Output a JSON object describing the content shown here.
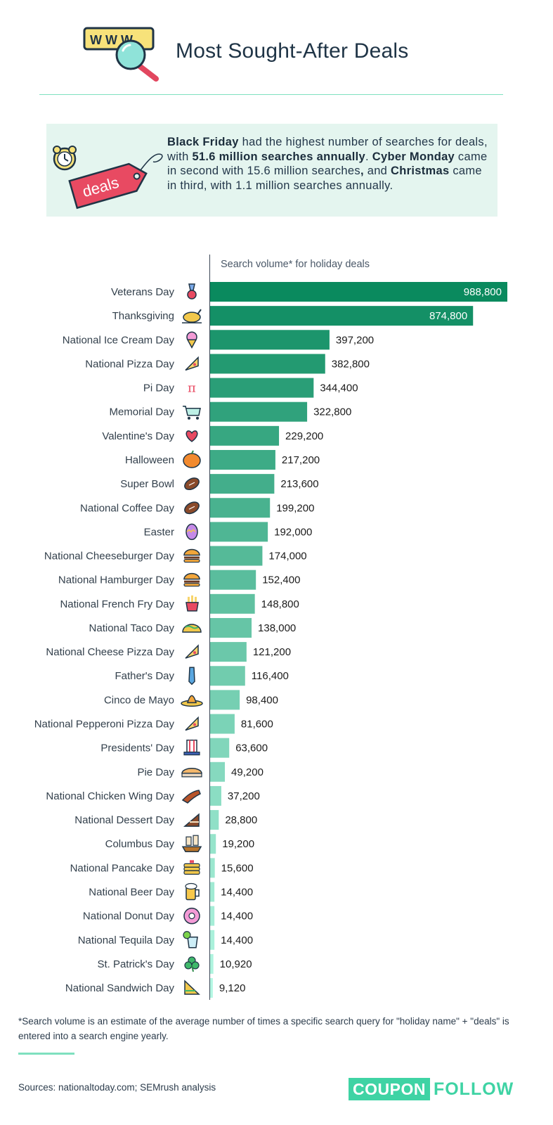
{
  "header": {
    "title": "Most Sought-After Deals",
    "icon": "www-search-icon",
    "icon_text": "W W W"
  },
  "summary": {
    "icon": "deals-tag-alarm-clock-icon",
    "tag_text": "deals",
    "parts": [
      {
        "text": "Black Friday",
        "bold": true
      },
      {
        "text": " had the highest number of searches for deals, with ",
        "bold": false
      },
      {
        "text": "51.6 million searches annually",
        "bold": true
      },
      {
        "text": ". ",
        "bold": false
      },
      {
        "text": "Cyber Monday",
        "bold": false,
        "strong": true
      },
      {
        "text": " came in second with 15.6 million searches",
        "bold": false
      },
      {
        "text": ",",
        "bold": true
      },
      {
        "text": " and ",
        "bold": false
      },
      {
        "text": "Christmas",
        "bold": true
      },
      {
        "text": " came in third, with 1.1 million searches annually.",
        "bold": false
      }
    ]
  },
  "chart_data": {
    "type": "bar",
    "orientation": "horizontal",
    "title": "Search volume* for holiday deals",
    "xlabel": "",
    "ylabel": "",
    "xlim": [
      0,
      988800
    ],
    "categories": [
      "Veterans Day",
      "Thanksgiving",
      "National Ice Cream Day",
      "National Pizza Day",
      "Pi Day",
      "Memorial Day",
      "Valentine's Day",
      "Halloween",
      "Super Bowl",
      "National Coffee Day",
      "Easter",
      "National Cheeseburger Day",
      "National Hamburger Day",
      "National French Fry Day",
      "National Taco Day",
      "National Cheese Pizza Day",
      "Father's Day",
      "Cinco de Mayo",
      "National Pepperoni Pizza Day",
      "Presidents' Day",
      "Pie Day",
      "National Chicken Wing Day",
      "National Dessert Day",
      "Columbus Day",
      "National Pancake Day",
      "National Beer Day",
      "National Donut Day",
      "National Tequila Day",
      "St. Patrick's Day",
      "National Sandwich Day"
    ],
    "values": [
      988800,
      874800,
      397200,
      382800,
      344400,
      322800,
      229200,
      217200,
      213600,
      199200,
      192000,
      174000,
      152400,
      148800,
      138000,
      121200,
      116400,
      98400,
      81600,
      63600,
      49200,
      37200,
      28800,
      19200,
      15600,
      14400,
      14400,
      14400,
      10920,
      9120
    ],
    "value_labels": [
      "988,800",
      "874,800",
      "397,200",
      "382,800",
      "344,400",
      "322,800",
      "229,200",
      "217,200",
      "213,600",
      "199,200",
      "192,000",
      "174,000",
      "152,400",
      "148,800",
      "138,000",
      "121,200",
      "116,400",
      "98,400",
      "81,600",
      "63,600",
      "49,200",
      "37,200",
      "28,800",
      "19,200",
      "15,600",
      "14,400",
      "14,400",
      "14,400",
      "10,920",
      "9,120"
    ],
    "icons": [
      "medal-icon",
      "turkey-icon",
      "ice-cream-icon",
      "pizza-slice-icon",
      "pi-icon",
      "shopping-cart-icon",
      "hearts-icon",
      "pumpkin-icon",
      "football-icon",
      "coffee-bean-icon",
      "easter-egg-icon",
      "cheeseburger-icon",
      "hamburger-icon",
      "french-fries-icon",
      "taco-icon",
      "cheese-pizza-icon",
      "necktie-icon",
      "sombrero-icon",
      "pepperoni-pizza-icon",
      "uncle-sam-hat-icon",
      "pie-icon",
      "chicken-wing-icon",
      "cake-slice-icon",
      "ship-icon",
      "pancakes-icon",
      "beer-mug-icon",
      "donut-icon",
      "tequila-icon",
      "shamrock-icon",
      "sandwich-icon"
    ],
    "colors": {
      "bar_dark": "#0a8a5e",
      "bar_light": "#b4f7e3",
      "label_inside": "#ffffff",
      "label_outside": "#1b1b1b",
      "category_text": "#33404c"
    }
  },
  "footnote": "*Search volume is an estimate of the average number of times a specific search query for \"holiday name\" + \"deals\" is entered into a search engine yearly.",
  "sources": "Sources: nationaltoday.com; SEMrush analysis",
  "logo": {
    "box_text": "COUPON",
    "text": "FOLLOW",
    "color": "#3fd3a4"
  }
}
